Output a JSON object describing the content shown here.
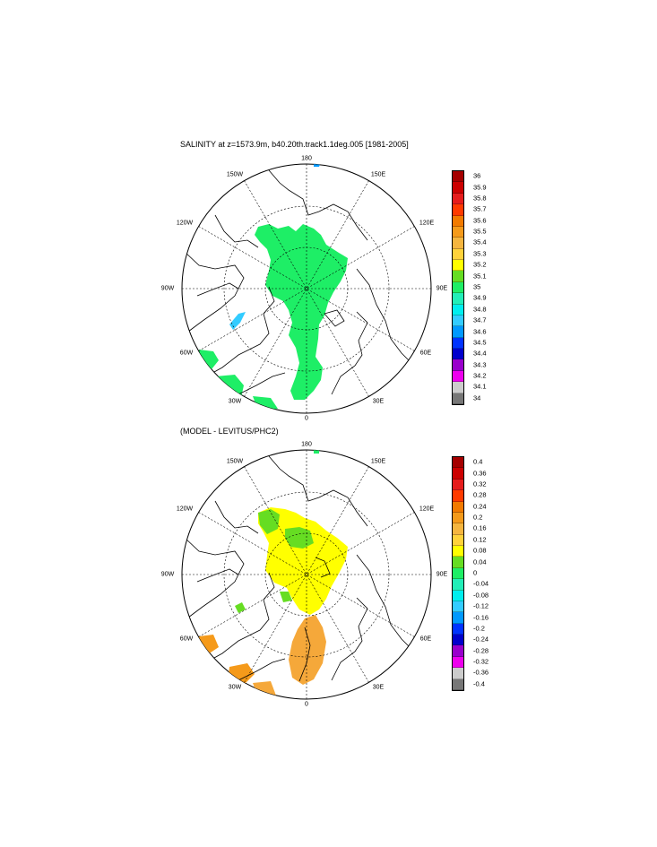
{
  "panels": [
    {
      "title": "SALINITY at z=1573.9m, b40.20th.track1.1deg.005 [1981-2005]",
      "lon_labels": {
        "top": "180",
        "bottom": "0",
        "left": "90W",
        "right": "90E",
        "nw1": "150W",
        "nw2": "120W",
        "ne1": "150E",
        "ne2": "120E",
        "sw1": "60W",
        "sw2": "30W",
        "se1": "60E",
        "se2": "30E"
      },
      "colorbar": {
        "labels": [
          "36",
          "35.9",
          "35.8",
          "35.7",
          "35.6",
          "35.5",
          "35.4",
          "35.3",
          "35.2",
          "35.1",
          "35",
          "34.9",
          "34.8",
          "34.7",
          "34.6",
          "34.5",
          "34.4",
          "34.3",
          "34.2",
          "34.1",
          "34"
        ],
        "colors": [
          "#a50000",
          "#cc0000",
          "#e61c1c",
          "#ff3a00",
          "#f27a00",
          "#f59a1a",
          "#f5b53f",
          "#ffd23a",
          "#ffff00",
          "#66dd22",
          "#1eee66",
          "#22eeb8",
          "#00eeee",
          "#33ccff",
          "#0099ff",
          "#0033ff",
          "#0000cc",
          "#9900cc",
          "#ee00ee",
          "#cccccc",
          "#777777"
        ]
      },
      "field_color": "#1eee66",
      "highlight_color": "#33ccff"
    },
    {
      "title": "(MODEL - LEVITUS/PHC2)",
      "lon_labels": {
        "top": "180",
        "bottom": "0",
        "left": "90W",
        "right": "90E",
        "nw1": "150W",
        "nw2": "120W",
        "ne1": "150E",
        "ne2": "120E",
        "sw1": "60W",
        "sw2": "30W",
        "se1": "60E",
        "se2": "30E"
      },
      "colorbar": {
        "labels": [
          "0.4",
          "0.36",
          "0.32",
          "0.28",
          "0.24",
          "0.2",
          "0.16",
          "0.12",
          "0.08",
          "0.04",
          "0",
          "-0.04",
          "-0.08",
          "-0.12",
          "-0.16",
          "-0.2",
          "-0.24",
          "-0.28",
          "-0.32",
          "-0.36",
          "-0.4"
        ],
        "colors": [
          "#a50000",
          "#cc0000",
          "#e61c1c",
          "#ff3a00",
          "#f27a00",
          "#f59a1a",
          "#f5b53f",
          "#ffd23a",
          "#ffff00",
          "#66dd22",
          "#1eee66",
          "#22eeb8",
          "#00eeee",
          "#33ccff",
          "#0099ff",
          "#0033ff",
          "#0000cc",
          "#9900cc",
          "#ee00ee",
          "#cccccc",
          "#777777"
        ]
      },
      "field_color": "#ffff00",
      "positive_color": "#f5a83a",
      "highlight_color": "#66dd22"
    }
  ]
}
